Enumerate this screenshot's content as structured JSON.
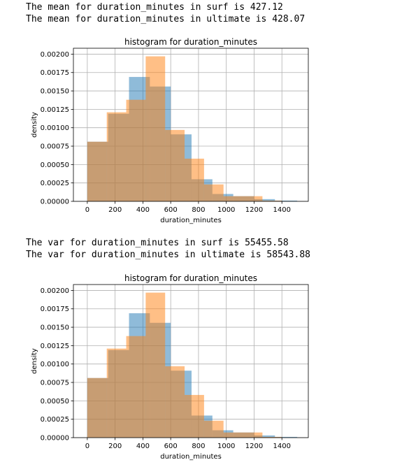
{
  "output": {
    "mean_line_1": "The mean for duration_minutes in surf is 427.12",
    "mean_line_2": "The mean for duration_minutes in ultimate is 428.07",
    "var_line_1": "The var for duration_minutes in surf is 55455.58",
    "var_line_2": "The var for duration_minutes in ultimate is 58543.88"
  },
  "chart_data": [
    {
      "type": "bar",
      "title": "histogram for duration_minutes",
      "xlabel": "duration_minutes",
      "ylabel": "density",
      "xlim": [
        -100,
        1590
      ],
      "ylim": [
        0,
        0.00208
      ],
      "xticks": [
        "0",
        "200",
        "400",
        "600",
        "800",
        "1000",
        "1200",
        "1400"
      ],
      "xtick_values": [
        0,
        200,
        400,
        600,
        800,
        1000,
        1200,
        1400
      ],
      "yticks": [
        "0.00000",
        "0.00025",
        "0.00050",
        "0.00075",
        "0.00100",
        "0.00125",
        "0.00150",
        "0.00175",
        "0.00200"
      ],
      "ytick_values": [
        0,
        0.00025,
        0.0005,
        0.00075,
        0.001,
        0.00125,
        0.0015,
        0.00175,
        0.002
      ],
      "grid": true,
      "series": [
        {
          "color": "#1f77b4",
          "opacity": 0.5,
          "bins": [
            {
              "x0": 0,
              "x1": 150,
              "y": 0.00081
            },
            {
              "x0": 150,
              "x1": 300,
              "y": 0.00119
            },
            {
              "x0": 300,
              "x1": 450,
              "y": 0.00169
            },
            {
              "x0": 450,
              "x1": 600,
              "y": 0.00156
            },
            {
              "x0": 600,
              "x1": 750,
              "y": 0.00091
            },
            {
              "x0": 750,
              "x1": 900,
              "y": 0.0003
            },
            {
              "x0": 900,
              "x1": 1050,
              "y": 0.0001
            },
            {
              "x0": 1050,
              "x1": 1200,
              "y": 7e-05
            },
            {
              "x0": 1200,
              "x1": 1350,
              "y": 3e-05
            },
            {
              "x0": 1350,
              "x1": 1510,
              "y": 1e-05
            }
          ]
        },
        {
          "color": "#ff7f0e",
          "opacity": 0.5,
          "bins": [
            {
              "x0": 0,
              "x1": 140,
              "y": 0.00081
            },
            {
              "x0": 140,
              "x1": 280,
              "y": 0.00121
            },
            {
              "x0": 280,
              "x1": 420,
              "y": 0.00138
            },
            {
              "x0": 420,
              "x1": 560,
              "y": 0.00197
            },
            {
              "x0": 560,
              "x1": 700,
              "y": 0.00097
            },
            {
              "x0": 700,
              "x1": 840,
              "y": 0.00058
            },
            {
              "x0": 840,
              "x1": 980,
              "y": 0.00023
            },
            {
              "x0": 980,
              "x1": 1120,
              "y": 7e-05
            },
            {
              "x0": 1120,
              "x1": 1260,
              "y": 7e-05
            },
            {
              "x0": 1260,
              "x1": 1400,
              "y": 1e-05
            }
          ]
        }
      ]
    },
    {
      "type": "bar",
      "title": "histogram for duration_minutes",
      "xlabel": "duration_minutes",
      "ylabel": "density",
      "xlim": [
        -100,
        1590
      ],
      "ylim": [
        0,
        0.00208
      ],
      "xticks": [
        "0",
        "200",
        "400",
        "600",
        "800",
        "1000",
        "1200",
        "1400"
      ],
      "xtick_values": [
        0,
        200,
        400,
        600,
        800,
        1000,
        1200,
        1400
      ],
      "yticks": [
        "0.00000",
        "0.00025",
        "0.00050",
        "0.00075",
        "0.00100",
        "0.00125",
        "0.00150",
        "0.00175",
        "0.00200"
      ],
      "ytick_values": [
        0,
        0.00025,
        0.0005,
        0.00075,
        0.001,
        0.00125,
        0.0015,
        0.00175,
        0.002
      ],
      "grid": true,
      "series": [
        {
          "color": "#1f77b4",
          "opacity": 0.5,
          "bins": [
            {
              "x0": 0,
              "x1": 150,
              "y": 0.00081
            },
            {
              "x0": 150,
              "x1": 300,
              "y": 0.00119
            },
            {
              "x0": 300,
              "x1": 450,
              "y": 0.00169
            },
            {
              "x0": 450,
              "x1": 600,
              "y": 0.00156
            },
            {
              "x0": 600,
              "x1": 750,
              "y": 0.00091
            },
            {
              "x0": 750,
              "x1": 900,
              "y": 0.0003
            },
            {
              "x0": 900,
              "x1": 1050,
              "y": 0.0001
            },
            {
              "x0": 1050,
              "x1": 1200,
              "y": 7e-05
            },
            {
              "x0": 1200,
              "x1": 1350,
              "y": 3e-05
            },
            {
              "x0": 1350,
              "x1": 1510,
              "y": 1e-05
            }
          ]
        },
        {
          "color": "#ff7f0e",
          "opacity": 0.5,
          "bins": [
            {
              "x0": 0,
              "x1": 140,
              "y": 0.00081
            },
            {
              "x0": 140,
              "x1": 280,
              "y": 0.00121
            },
            {
              "x0": 280,
              "x1": 420,
              "y": 0.00138
            },
            {
              "x0": 420,
              "x1": 560,
              "y": 0.00197
            },
            {
              "x0": 560,
              "x1": 700,
              "y": 0.00097
            },
            {
              "x0": 700,
              "x1": 840,
              "y": 0.00058
            },
            {
              "x0": 840,
              "x1": 980,
              "y": 0.00023
            },
            {
              "x0": 980,
              "x1": 1120,
              "y": 7e-05
            },
            {
              "x0": 1120,
              "x1": 1260,
              "y": 7e-05
            },
            {
              "x0": 1260,
              "x1": 1400,
              "y": 1e-05
            }
          ]
        }
      ]
    }
  ]
}
